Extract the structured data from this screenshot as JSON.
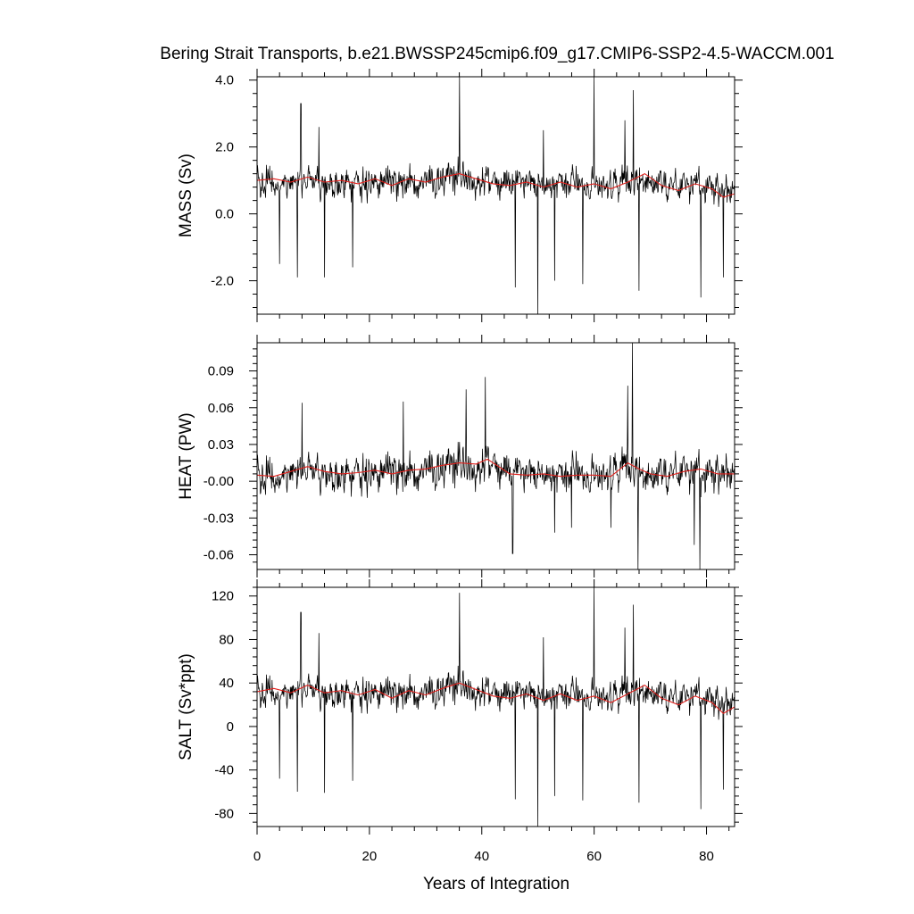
{
  "chart_data": {
    "type": "line",
    "title": "Bering Strait Transports, b.e21.BWSSP245cmip6.f09_g17.CMIP6-SSP2-4.5-WACCM.001",
    "xlabel": "Years of Integration",
    "x_ticks": [
      "0",
      "20",
      "40",
      "60",
      "80"
    ],
    "xlim": [
      0,
      85
    ],
    "colors": {
      "raw": "#000000",
      "smoothed": "#e0201c"
    },
    "grid": false,
    "panels": [
      {
        "ylabel": "MASS (Sv)",
        "ylim": [
          -3.0,
          4.1
        ],
        "y_ticks": [
          {
            "value": 4.0,
            "label": "4.0"
          },
          {
            "value": 2.0,
            "label": "2.0"
          },
          {
            "value": 0.0,
            "label": "0.0"
          },
          {
            "value": -2.0,
            "label": "-2.0"
          }
        ],
        "mean": 0.9,
        "amplitude": 0.55,
        "smooth": [
          [
            0,
            1.0
          ],
          [
            3,
            1.05
          ],
          [
            6,
            0.95
          ],
          [
            9,
            1.1
          ],
          [
            12,
            0.95
          ],
          [
            15,
            1.0
          ],
          [
            18,
            0.9
          ],
          [
            21,
            1.05
          ],
          [
            24,
            0.85
          ],
          [
            27,
            1.05
          ],
          [
            30,
            0.95
          ],
          [
            33,
            1.1
          ],
          [
            36,
            1.2
          ],
          [
            39,
            1.05
          ],
          [
            42,
            0.9
          ],
          [
            45,
            0.85
          ],
          [
            48,
            0.95
          ],
          [
            51,
            0.8
          ],
          [
            54,
            0.95
          ],
          [
            57,
            0.8
          ],
          [
            60,
            0.9
          ],
          [
            63,
            0.75
          ],
          [
            66,
            0.95
          ],
          [
            69,
            1.2
          ],
          [
            72,
            0.85
          ],
          [
            75,
            0.7
          ],
          [
            78,
            0.9
          ],
          [
            81,
            0.75
          ],
          [
            83,
            0.5
          ],
          [
            85,
            0.6
          ]
        ],
        "spikes": [
          [
            7.8,
            3.3
          ],
          [
            11,
            2.6
          ],
          [
            36,
            4.1
          ],
          [
            60,
            4.1
          ],
          [
            67,
            3.7
          ],
          [
            65.5,
            2.8
          ],
          [
            51,
            2.5
          ],
          [
            7.2,
            -1.9
          ],
          [
            12,
            -1.9
          ],
          [
            46,
            -2.2
          ],
          [
            50,
            -3.0
          ],
          [
            53,
            -2.0
          ],
          [
            58,
            -2.1
          ],
          [
            68,
            -2.3
          ],
          [
            79,
            -2.5
          ],
          [
            83,
            -1.9
          ],
          [
            17,
            -1.6
          ],
          [
            4,
            -1.5
          ]
        ]
      },
      {
        "ylabel": "HEAT (PW)",
        "ylim": [
          -0.072,
          0.113
        ],
        "y_ticks": [
          {
            "value": 0.09,
            "label": "0.09"
          },
          {
            "value": 0.06,
            "label": "0.06"
          },
          {
            "value": 0.03,
            "label": "0.03"
          },
          {
            "value": 0.0,
            "label": "-0.00"
          },
          {
            "value": -0.03,
            "label": "-0.03"
          },
          {
            "value": -0.06,
            "label": "-0.06"
          }
        ],
        "mean": 0.006,
        "amplitude": 0.018,
        "smooth": [
          [
            0,
            0.005
          ],
          [
            3,
            0.004
          ],
          [
            6,
            0.008
          ],
          [
            9,
            0.012
          ],
          [
            12,
            0.008
          ],
          [
            15,
            0.006
          ],
          [
            18,
            0.007
          ],
          [
            21,
            0.009
          ],
          [
            24,
            0.006
          ],
          [
            27,
            0.009
          ],
          [
            30,
            0.01
          ],
          [
            33,
            0.013
          ],
          [
            36,
            0.015
          ],
          [
            39,
            0.014
          ],
          [
            41,
            0.018
          ],
          [
            43,
            0.012
          ],
          [
            45,
            0.006
          ],
          [
            48,
            0.005
          ],
          [
            51,
            0.006
          ],
          [
            54,
            0.004
          ],
          [
            57,
            0.005
          ],
          [
            60,
            0.005
          ],
          [
            63,
            0.004
          ],
          [
            66,
            0.015
          ],
          [
            68,
            0.01
          ],
          [
            70,
            0.006
          ],
          [
            73,
            0.004
          ],
          [
            76,
            0.008
          ],
          [
            79,
            0.01
          ],
          [
            82,
            0.006
          ],
          [
            85,
            0.006
          ]
        ],
        "spikes": [
          [
            66.8,
            0.113
          ],
          [
            40.6,
            0.085
          ],
          [
            37.2,
            0.075
          ],
          [
            66,
            0.078
          ],
          [
            8,
            0.064
          ],
          [
            45.5,
            -0.059
          ],
          [
            67.8,
            -0.072
          ],
          [
            78.8,
            -0.072
          ],
          [
            77.8,
            -0.052
          ],
          [
            53,
            -0.042
          ],
          [
            56,
            -0.038
          ],
          [
            63,
            -0.038
          ],
          [
            26,
            0.065
          ]
        ]
      },
      {
        "ylabel": "SALT (Sv*ppt)",
        "ylim": [
          -92,
          128
        ],
        "y_ticks": [
          {
            "value": 120,
            "label": "120"
          },
          {
            "value": 80,
            "label": "80"
          },
          {
            "value": 40,
            "label": "40"
          },
          {
            "value": 0,
            "label": "0"
          },
          {
            "value": -40,
            "label": "-40"
          },
          {
            "value": -80,
            "label": "-80"
          }
        ],
        "mean": 31,
        "amplitude": 17,
        "smooth": [
          [
            0,
            32
          ],
          [
            3,
            35
          ],
          [
            6,
            31
          ],
          [
            9,
            38
          ],
          [
            12,
            31
          ],
          [
            15,
            33
          ],
          [
            18,
            29
          ],
          [
            21,
            34
          ],
          [
            24,
            26
          ],
          [
            27,
            33
          ],
          [
            30,
            29
          ],
          [
            33,
            35
          ],
          [
            36,
            40
          ],
          [
            39,
            34
          ],
          [
            42,
            28
          ],
          [
            45,
            26
          ],
          [
            48,
            30
          ],
          [
            51,
            24
          ],
          [
            54,
            30
          ],
          [
            57,
            24
          ],
          [
            60,
            28
          ],
          [
            63,
            22
          ],
          [
            66,
            30
          ],
          [
            69,
            38
          ],
          [
            72,
            26
          ],
          [
            75,
            20
          ],
          [
            78,
            28
          ],
          [
            81,
            22
          ],
          [
            83,
            12
          ],
          [
            85,
            18
          ]
        ],
        "spikes": [
          [
            7.8,
            105
          ],
          [
            11,
            86
          ],
          [
            36,
            123
          ],
          [
            60,
            128
          ],
          [
            67,
            112
          ],
          [
            65.5,
            91
          ],
          [
            51,
            82
          ],
          [
            7.2,
            -60
          ],
          [
            12,
            -61
          ],
          [
            46,
            -67
          ],
          [
            50,
            -92
          ],
          [
            53,
            -64
          ],
          [
            58,
            -68
          ],
          [
            68,
            -70
          ],
          [
            79,
            -76
          ],
          [
            83,
            -58
          ],
          [
            17,
            -50
          ],
          [
            4,
            -48
          ]
        ]
      }
    ]
  }
}
